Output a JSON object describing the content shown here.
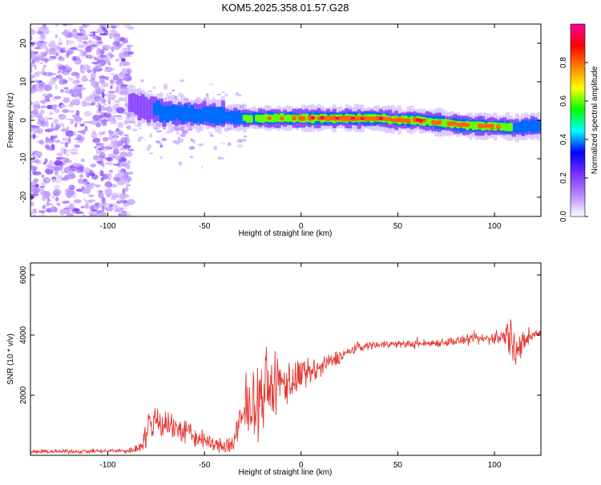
{
  "title": "KOM5.2025.358.01.57.G28",
  "chart_data": [
    {
      "type": "heatmap",
      "title": "KOM5.2025.358.01.57.G28",
      "xlabel": "Height of straight line (km)",
      "ylabel": "Frequency (Hz)",
      "xlim": [
        -140,
        124
      ],
      "ylim": [
        -25,
        25
      ],
      "xticks": [
        -100,
        -50,
        0,
        50,
        100
      ],
      "yticks": [
        -20,
        -10,
        0,
        10,
        20
      ],
      "xtick_labels": [
        "-100",
        "-50",
        "0",
        "50",
        "100"
      ],
      "ytick_labels": [
        "-20",
        "-10",
        "0",
        "10",
        "20"
      ],
      "ridge": {
        "x": [
          -90,
          -80,
          -70,
          -60,
          -50,
          -40,
          -30,
          -20,
          -10,
          0,
          10,
          20,
          30,
          40,
          50,
          60,
          70,
          80,
          90,
          100,
          110,
          120
        ],
        "frequency": [
          5,
          3,
          2,
          1.5,
          1.5,
          1,
          0.5,
          0.5,
          0.5,
          0.5,
          0.5,
          0.5,
          0.5,
          0.5,
          0,
          0,
          -0.5,
          -1,
          -1.5,
          -1.5,
          -2,
          -1.5
        ],
        "amplitude": [
          0.2,
          0.35,
          0.45,
          0.5,
          0.5,
          0.5,
          0.55,
          0.7,
          0.8,
          0.85,
          0.92,
          0.95,
          0.95,
          0.95,
          0.92,
          0.92,
          0.85,
          0.9,
          0.88,
          0.85,
          0.6,
          0.45
        ]
      },
      "noise_region_x": [
        -140,
        -88
      ],
      "grid": false
    },
    {
      "type": "colorbar",
      "label": "Normalized spectral amplitude",
      "range": [
        0,
        1
      ],
      "ticks": [
        0.0,
        0.2,
        0.4,
        0.6,
        0.8
      ],
      "tick_labels": [
        "0.0",
        "0.2",
        "0.4",
        "0.6",
        "0.8"
      ],
      "colors": [
        "#ffffff",
        "#b388ff",
        "#7b2fff",
        "#0000ff",
        "#00ffff",
        "#00ff00",
        "#ffff00",
        "#ff8000",
        "#ff0000",
        "#ff00a0"
      ]
    },
    {
      "type": "line",
      "xlabel": "Height of straight line (km)",
      "ylabel": "SNR (10 * v/v)",
      "xlim": [
        -140,
        124
      ],
      "ylim": [
        0,
        6400
      ],
      "xticks": [
        -100,
        -50,
        0,
        50,
        100
      ],
      "yticks": [
        2000,
        4000,
        6000
      ],
      "xtick_labels": [
        "-100",
        "-50",
        "0",
        "50",
        "100"
      ],
      "ytick_labels": [
        "2000",
        "4000",
        "6000"
      ],
      "color": "#e53935",
      "series": [
        {
          "x": [
            -140,
            -120,
            -100,
            -90,
            -85,
            -80,
            -75,
            -70,
            -65,
            -60,
            -55,
            -50,
            -45,
            -40,
            -35,
            -30,
            -25,
            -20,
            -15,
            -10,
            -5,
            0,
            5,
            10,
            15,
            20,
            25,
            30,
            35,
            40,
            50,
            60,
            70,
            80,
            90,
            100,
            105,
            108,
            110,
            112,
            115,
            120,
            124
          ],
          "y": [
            120,
            130,
            140,
            150,
            200,
            700,
            1200,
            1100,
            900,
            800,
            600,
            500,
            350,
            300,
            400,
            1300,
            1700,
            2000,
            2300,
            2400,
            2500,
            2600,
            2750,
            2900,
            3100,
            3300,
            3450,
            3600,
            3650,
            3700,
            3700,
            3700,
            3750,
            3800,
            3850,
            3900,
            3950,
            4000,
            3900,
            3500,
            3700,
            4000,
            4100
          ],
          "amplitude": [
            80,
            80,
            100,
            120,
            200,
            700,
            900,
            800,
            700,
            600,
            500,
            400,
            300,
            400,
            600,
            1200,
            1400,
            1600,
            1500,
            1200,
            1000,
            800,
            600,
            500,
            400,
            300,
            250,
            200,
            180,
            180,
            170,
            180,
            200,
            220,
            250,
            300,
            400,
            1100,
            1300,
            900,
            500,
            200,
            180
          ]
        }
      ],
      "grid": false
    }
  ]
}
